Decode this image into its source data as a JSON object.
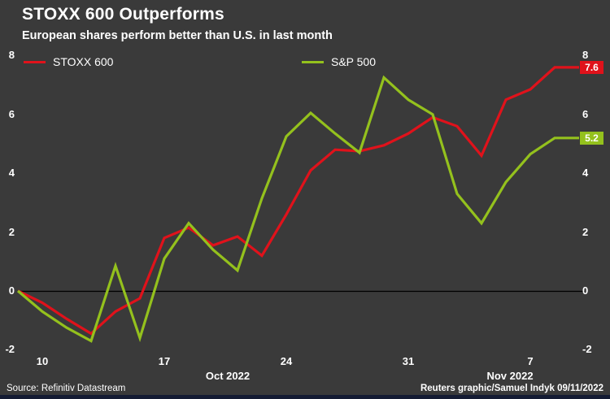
{
  "title": "STOXX 600 Outperforms",
  "subtitle": "European shares perform better than U.S. in last month",
  "legend": {
    "items": [
      {
        "label": "STOXX 600",
        "color": "#e0121b"
      },
      {
        "label": "S&P 500",
        "color": "#94c11d"
      }
    ]
  },
  "footer": {
    "source": "Source: Refinitiv Datastream",
    "credit": "Reuters graphic/Samuel Indyk 09/11/2022"
  },
  "colors": {
    "background": "#3a3a3a",
    "text": "#ffffff",
    "zero_line": "#000000",
    "footer_bar": "#141b33",
    "stoxx_red": "#e0121b",
    "sp500_green": "#94c11d"
  },
  "chart_data": {
    "type": "line",
    "x": [
      "Oct 7",
      "Oct 10",
      "Oct 11",
      "Oct 12",
      "Oct 13",
      "Oct 14",
      "Oct 17",
      "Oct 18",
      "Oct 19",
      "Oct 20",
      "Oct 21",
      "Oct 24",
      "Oct 25",
      "Oct 26",
      "Oct 27",
      "Oct 28",
      "Oct 31",
      "Nov 1",
      "Nov 2",
      "Nov 3",
      "Nov 4",
      "Nov 7",
      "Nov 8",
      "Nov 9"
    ],
    "series": [
      {
        "name": "STOXX 600",
        "color": "#e0121b",
        "end_label": "7.6",
        "values": [
          0,
          -0.4,
          -0.95,
          -1.45,
          -0.7,
          -0.25,
          1.8,
          2.15,
          1.55,
          1.85,
          1.2,
          2.6,
          4.1,
          4.8,
          4.75,
          4.95,
          5.35,
          5.9,
          5.6,
          4.6,
          6.5,
          6.85,
          7.6,
          7.6
        ]
      },
      {
        "name": "S&P 500",
        "color": "#94c11d",
        "end_label": "5.2",
        "values": [
          0,
          -0.7,
          -1.25,
          -1.7,
          0.85,
          -1.6,
          1.1,
          2.3,
          1.4,
          0.7,
          3.15,
          5.25,
          6.05,
          5.35,
          4.7,
          7.25,
          6.5,
          6.0,
          3.3,
          2.3,
          3.7,
          4.65,
          5.2,
          5.2
        ]
      }
    ],
    "y_ticks": [
      8,
      6,
      4,
      2,
      0,
      -2
    ],
    "ylim": [
      -2,
      8
    ],
    "x_tick_labels": [
      {
        "label": "10",
        "index": 1
      },
      {
        "label": "17",
        "index": 6
      },
      {
        "label": "24",
        "index": 11
      },
      {
        "label": "31",
        "index": 16
      },
      {
        "label": "7",
        "index": 21
      }
    ],
    "month_labels": [
      {
        "label": "Oct 2022"
      },
      {
        "label": "Nov 2022"
      }
    ],
    "grid": false,
    "zero_baseline": true,
    "legend_position": "top",
    "units": "percent change"
  }
}
